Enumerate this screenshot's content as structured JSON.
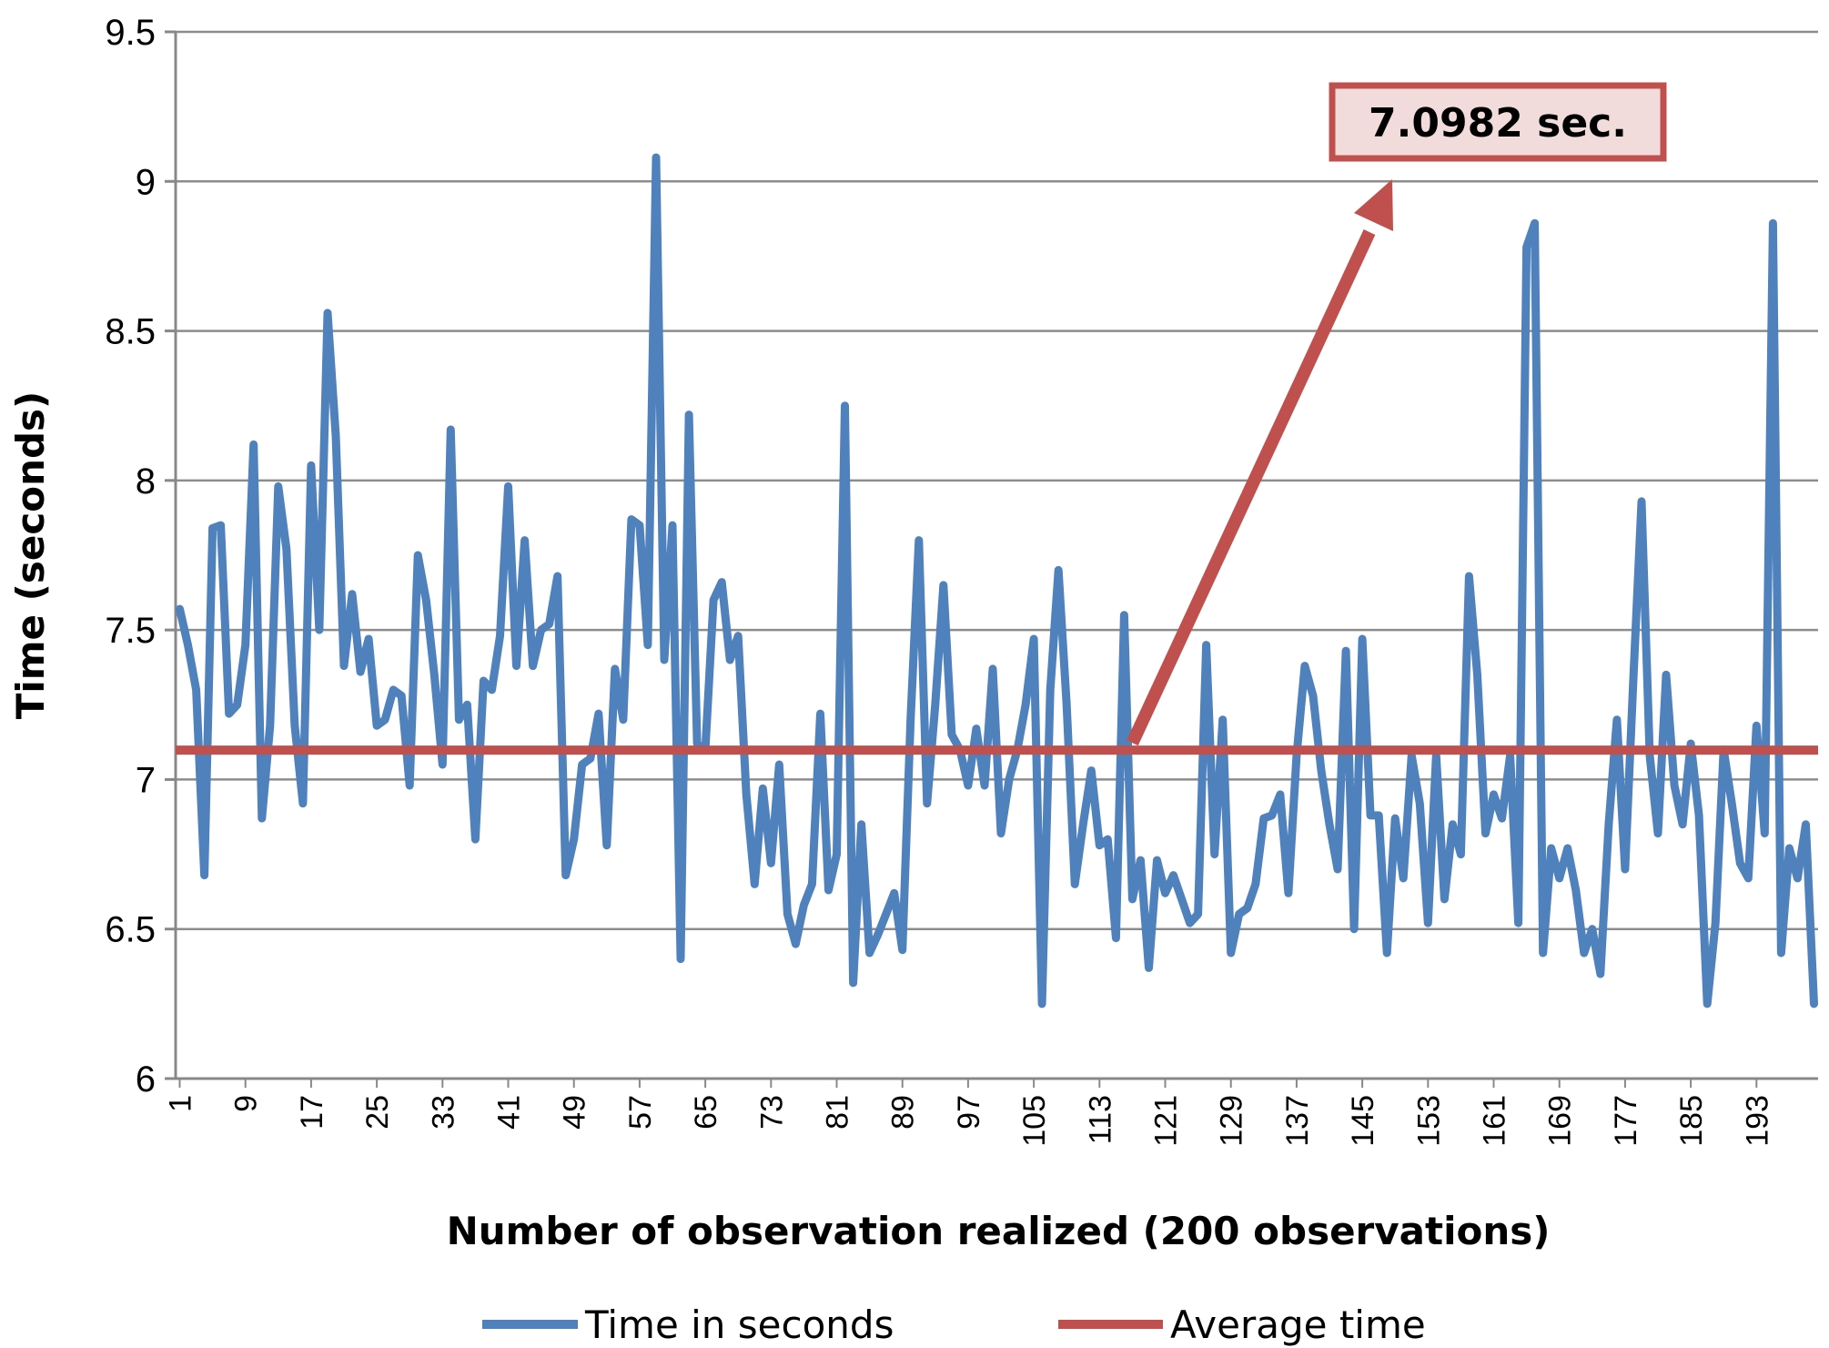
{
  "chart_data": {
    "type": "line",
    "title": "",
    "xlabel": "Number of observation realized (200 observations)",
    "ylabel": "Time (seconds)",
    "ylim": [
      6,
      9.5
    ],
    "yticks": [
      "6",
      "6.5",
      "7",
      "7.5",
      "8",
      "8.5",
      "9",
      "9.5"
    ],
    "xticks": [
      "1",
      "9",
      "17",
      "25",
      "33",
      "41",
      "49",
      "57",
      "65",
      "73",
      "81",
      "89",
      "97",
      "105",
      "113",
      "121",
      "129",
      "137",
      "145",
      "153",
      "161",
      "169",
      "177",
      "185",
      "193"
    ],
    "x": [
      1,
      2,
      3,
      4,
      5,
      6,
      7,
      8,
      9,
      10,
      11,
      12,
      13,
      14,
      15,
      16,
      17,
      18,
      19,
      20,
      21,
      22,
      23,
      24,
      25,
      26,
      27,
      28,
      29,
      30,
      31,
      32,
      33,
      34,
      35,
      36,
      37,
      38,
      39,
      40,
      41,
      42,
      43,
      44,
      45,
      46,
      47,
      48,
      49,
      50,
      51,
      52,
      53,
      54,
      55,
      56,
      57,
      58,
      59,
      60,
      61,
      62,
      63,
      64,
      65,
      66,
      67,
      68,
      69,
      70,
      71,
      72,
      73,
      74,
      75,
      76,
      77,
      78,
      79,
      80,
      81,
      82,
      83,
      84,
      85,
      86,
      87,
      88,
      89,
      90,
      91,
      92,
      93,
      94,
      95,
      96,
      97,
      98,
      99,
      100,
      101,
      102,
      103,
      104,
      105,
      106,
      107,
      108,
      109,
      110,
      111,
      112,
      113,
      114,
      115,
      116,
      117,
      118,
      119,
      120,
      121,
      122,
      123,
      124,
      125,
      126,
      127,
      128,
      129,
      130,
      131,
      132,
      133,
      134,
      135,
      136,
      137,
      138,
      139,
      140,
      141,
      142,
      143,
      144,
      145,
      146,
      147,
      148,
      149,
      150,
      151,
      152,
      153,
      154,
      155,
      156,
      157,
      158,
      159,
      160,
      161,
      162,
      163,
      164,
      165,
      166,
      167,
      168,
      169,
      170,
      171,
      172,
      173,
      174,
      175,
      176,
      177,
      178,
      179,
      180,
      181,
      182,
      183,
      184,
      185,
      186,
      187,
      188,
      189,
      190,
      191,
      192,
      193,
      194,
      195,
      196,
      197,
      198,
      199,
      200
    ],
    "series": [
      {
        "name": "Time in seconds",
        "color": "#4F81BD",
        "values": [
          7.57,
          7.45,
          7.3,
          6.68,
          7.84,
          7.85,
          7.22,
          7.25,
          7.45,
          8.12,
          6.87,
          7.18,
          7.98,
          7.77,
          7.18,
          6.92,
          8.05,
          7.5,
          8.56,
          8.15,
          7.38,
          7.62,
          7.36,
          7.47,
          7.18,
          7.2,
          7.3,
          7.28,
          6.98,
          7.75,
          7.6,
          7.35,
          7.05,
          8.17,
          7.2,
          7.25,
          6.8,
          7.33,
          7.3,
          7.48,
          7.98,
          7.38,
          7.8,
          7.38,
          7.5,
          7.52,
          7.68,
          6.68,
          6.8,
          7.05,
          7.07,
          7.22,
          6.78,
          7.37,
          7.2,
          7.87,
          7.85,
          7.45,
          9.08,
          7.4,
          7.85,
          6.4,
          8.22,
          7.12,
          7.1,
          7.6,
          7.66,
          7.4,
          7.48,
          6.95,
          6.65,
          6.97,
          6.72,
          7.05,
          6.55,
          6.45,
          6.58,
          6.65,
          7.22,
          6.63,
          6.75,
          8.25,
          6.32,
          6.85,
          6.42,
          6.48,
          6.55,
          6.62,
          6.43,
          7.2,
          7.8,
          6.92,
          7.25,
          7.65,
          7.15,
          7.1,
          6.98,
          7.17,
          6.98,
          7.37,
          6.82,
          7.0,
          7.1,
          7.25,
          7.47,
          6.25,
          7.3,
          7.7,
          7.25,
          6.65,
          6.85,
          7.03,
          6.78,
          6.8,
          6.47,
          7.55,
          6.6,
          6.73,
          6.37,
          6.73,
          6.62,
          6.68,
          6.6,
          6.52,
          6.55,
          7.45,
          6.75,
          7.2,
          6.42,
          6.55,
          6.57,
          6.65,
          6.87,
          6.88,
          6.95,
          6.62,
          7.08,
          7.38,
          7.28,
          7.03,
          6.85,
          6.7,
          7.43,
          6.5,
          7.47,
          6.88,
          6.88,
          6.42,
          6.87,
          6.67,
          7.08,
          6.92,
          6.52,
          7.08,
          6.6,
          6.85,
          6.75,
          7.68,
          7.35,
          6.82,
          6.95,
          6.87,
          7.08,
          6.52,
          8.78,
          8.86,
          6.42,
          6.77,
          6.67,
          6.77,
          6.63,
          6.42,
          6.5,
          6.35,
          6.85,
          7.2,
          6.7,
          7.33,
          7.93,
          7.08,
          6.82,
          7.35,
          6.98,
          6.85,
          7.12,
          6.88,
          6.25,
          6.52,
          7.1,
          6.92,
          6.72,
          6.67,
          7.18,
          6.82,
          8.86,
          6.42,
          6.77,
          6.67,
          6.85,
          6.25
        ]
      },
      {
        "name": "Average time",
        "color": "#C0504D",
        "constant": 7.0982
      }
    ],
    "legend": [
      "Time in seconds",
      "Average time"
    ],
    "legend_position": "bottom",
    "annotation": {
      "text": "7.0982 sec.",
      "points_to_x": 117,
      "value": 7.0982
    },
    "grid": true
  }
}
